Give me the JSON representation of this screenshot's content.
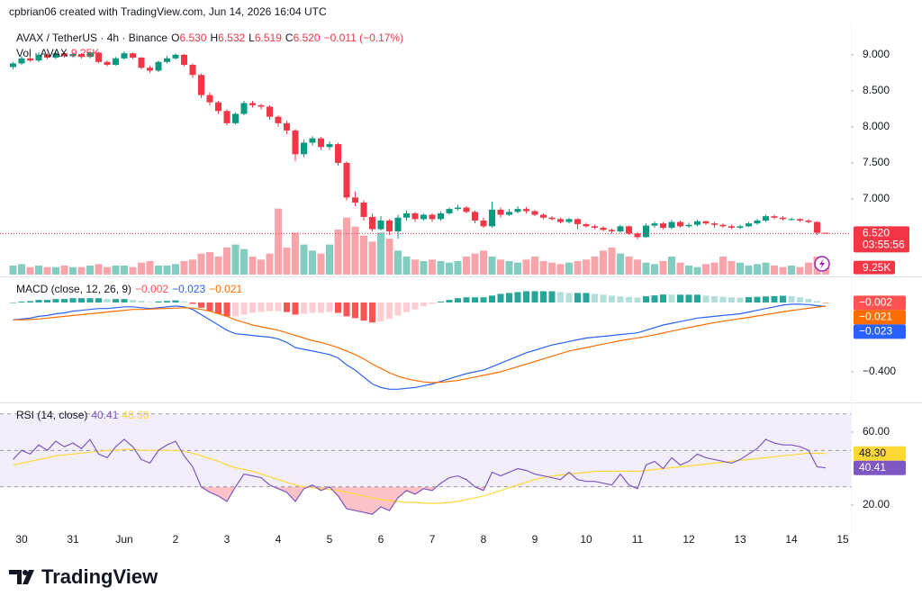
{
  "header": {
    "attribution": "cpbrian06 created with TradingView.com, Jun 14, 2026 16:04 UTC"
  },
  "logo": "TradingView",
  "chart_data": [
    {
      "type": "candlestick",
      "title": "AVAX / TetherUS · 4h · Binance",
      "legend": [
        {
          "key": "O",
          "value": "6.530"
        },
        {
          "key": "H",
          "value": "6.532"
        },
        {
          "key": "L",
          "value": "6.519"
        },
        {
          "key": "C",
          "value": "6.520"
        }
      ],
      "change": "−0.011 (−0.17%)",
      "categories": [
        null,
        "30",
        null,
        null,
        null,
        null,
        null,
        "31",
        null,
        null,
        null,
        null,
        null,
        "Jun",
        null,
        null,
        null,
        null,
        null,
        "2",
        null,
        null,
        null,
        null,
        null,
        "3",
        null,
        null,
        null,
        null,
        null,
        "4",
        null,
        null,
        null,
        null,
        null,
        "5",
        null,
        null,
        null,
        null,
        null,
        "6",
        null,
        null,
        null,
        null,
        null,
        "7",
        null,
        null,
        null,
        null,
        null,
        "8",
        null,
        null,
        null,
        null,
        null,
        "9",
        null,
        null,
        null,
        null,
        null,
        "10",
        null,
        null,
        null,
        null,
        null,
        "11",
        null,
        null,
        null,
        null,
        null,
        "12",
        null,
        null,
        null,
        null,
        null,
        "13",
        null,
        null,
        null,
        null,
        null,
        "14",
        null,
        null,
        null,
        null,
        null,
        "15"
      ],
      "open": [
        8.83,
        8.88,
        8.95,
        8.92,
        9.0,
        8.96,
        9.02,
        8.98,
        9.01,
        8.97,
        9.03,
        8.9,
        8.86,
        8.95,
        9.02,
        8.96,
        8.82,
        8.78,
        8.9,
        8.95,
        9.0,
        8.86,
        8.72,
        8.44,
        8.34,
        8.22,
        8.05,
        8.18,
        8.33,
        8.3,
        8.28,
        8.14,
        8.05,
        7.95,
        7.62,
        7.78,
        7.84,
        7.72,
        7.76,
        7.5,
        7.02,
        6.95,
        6.75,
        6.58,
        6.7,
        6.55,
        6.74,
        6.8,
        6.72,
        6.78,
        6.72,
        6.8,
        6.86,
        6.88,
        6.82,
        6.7,
        6.62,
        6.85,
        6.78,
        6.82,
        6.86,
        6.83,
        6.78,
        6.74,
        6.72,
        6.68,
        6.72,
        6.65,
        6.62,
        6.6,
        6.57,
        6.55,
        6.62,
        6.52,
        6.47,
        6.63,
        6.66,
        6.6,
        6.68,
        6.62,
        6.64,
        6.69,
        6.66,
        6.64,
        6.62,
        6.6,
        6.62,
        6.66,
        6.7,
        6.76,
        6.74,
        6.72,
        6.72,
        6.7,
        6.68,
        6.53,
        null,
        null
      ],
      "high": [
        8.9,
        8.98,
        8.97,
        9.03,
        9.02,
        9.04,
        9.03,
        9.03,
        9.02,
        9.05,
        9.04,
        8.92,
        8.97,
        9.05,
        9.03,
        8.97,
        8.85,
        8.92,
        8.98,
        9.02,
        9.01,
        8.88,
        8.74,
        8.48,
        8.36,
        8.24,
        8.2,
        8.36,
        8.36,
        8.32,
        8.3,
        8.16,
        8.08,
        7.97,
        7.82,
        7.87,
        7.86,
        7.8,
        7.78,
        7.52,
        7.1,
        6.98,
        6.8,
        6.76,
        6.72,
        6.78,
        6.84,
        6.82,
        6.8,
        6.8,
        6.83,
        6.88,
        6.92,
        6.9,
        6.84,
        6.74,
        6.96,
        6.88,
        6.86,
        6.9,
        6.89,
        6.85,
        6.8,
        6.76,
        6.74,
        6.74,
        6.73,
        6.67,
        6.64,
        6.62,
        6.59,
        6.64,
        6.63,
        6.54,
        6.66,
        6.69,
        6.68,
        6.71,
        6.7,
        6.67,
        6.71,
        6.7,
        6.68,
        6.66,
        6.64,
        6.64,
        6.68,
        6.72,
        6.78,
        6.78,
        6.76,
        6.74,
        6.73,
        6.72,
        6.69,
        6.532,
        null,
        null
      ],
      "low": [
        8.8,
        8.86,
        8.9,
        8.9,
        8.94,
        8.94,
        8.96,
        8.96,
        8.95,
        8.95,
        8.88,
        8.84,
        8.85,
        8.93,
        8.94,
        8.8,
        8.75,
        8.76,
        8.88,
        8.93,
        8.84,
        8.68,
        8.4,
        8.3,
        8.18,
        8.02,
        8.03,
        8.16,
        8.27,
        8.24,
        8.1,
        8.0,
        7.9,
        7.52,
        7.58,
        7.74,
        7.68,
        7.68,
        7.46,
        6.98,
        6.9,
        6.7,
        6.55,
        6.56,
        6.5,
        6.45,
        6.7,
        6.68,
        6.7,
        6.68,
        6.7,
        6.78,
        6.84,
        6.8,
        6.66,
        6.6,
        6.6,
        6.74,
        6.76,
        6.8,
        6.8,
        6.76,
        6.72,
        6.7,
        6.66,
        6.66,
        6.58,
        6.6,
        6.58,
        6.55,
        6.52,
        6.53,
        6.5,
        6.44,
        6.46,
        6.6,
        6.58,
        6.58,
        6.6,
        6.6,
        6.62,
        6.64,
        6.6,
        6.6,
        6.58,
        6.58,
        6.61,
        6.64,
        6.68,
        6.72,
        6.7,
        6.7,
        6.68,
        6.66,
        6.5,
        6.519,
        null,
        null
      ],
      "close": [
        8.88,
        8.95,
        8.92,
        9.0,
        8.96,
        9.02,
        8.98,
        9.01,
        8.97,
        9.03,
        8.9,
        8.86,
        8.95,
        9.02,
        8.96,
        8.82,
        8.78,
        8.9,
        8.95,
        9.0,
        8.86,
        8.72,
        8.44,
        8.34,
        8.22,
        8.05,
        8.18,
        8.33,
        8.3,
        8.28,
        8.14,
        8.05,
        7.95,
        7.62,
        7.78,
        7.84,
        7.72,
        7.76,
        7.5,
        7.02,
        6.95,
        6.75,
        6.58,
        6.7,
        6.55,
        6.74,
        6.8,
        6.72,
        6.78,
        6.72,
        6.8,
        6.86,
        6.88,
        6.82,
        6.7,
        6.62,
        6.85,
        6.78,
        6.82,
        6.86,
        6.83,
        6.78,
        6.74,
        6.72,
        6.68,
        6.72,
        6.65,
        6.62,
        6.6,
        6.57,
        6.55,
        6.62,
        6.52,
        6.47,
        6.63,
        6.66,
        6.6,
        6.68,
        6.62,
        6.64,
        6.69,
        6.66,
        6.64,
        6.62,
        6.6,
        6.62,
        6.66,
        6.7,
        6.76,
        6.74,
        6.72,
        6.72,
        6.7,
        6.68,
        6.53,
        6.52,
        null,
        null
      ],
      "close_label": "6.520",
      "countdown": "03:55:56",
      "up_color": "#089981",
      "down_color": "#f23645",
      "ylim": [
        5.95,
        9.41
      ],
      "yticks": [
        {
          "value": 7,
          "label": "7.000"
        },
        {
          "value": 7.5,
          "label": "7.500"
        },
        {
          "value": 8,
          "label": "8.000"
        },
        {
          "value": 8.5,
          "label": "8.500"
        },
        {
          "value": 9,
          "label": "9.000"
        }
      ],
      "grid": false
    },
    {
      "type": "bar",
      "title": "Vol · AVAX",
      "values": [
        6,
        7,
        5,
        6,
        5,
        5,
        6,
        5,
        5,
        6,
        7,
        5,
        6,
        6,
        5,
        8,
        9,
        6,
        6,
        7,
        9,
        10,
        14,
        15,
        12,
        18,
        20,
        17,
        12,
        10,
        14,
        44,
        18,
        28,
        20,
        16,
        14,
        20,
        30,
        38,
        32,
        26,
        22,
        28,
        24,
        16,
        12,
        10,
        9,
        10,
        9,
        8,
        9,
        12,
        14,
        16,
        12,
        10,
        9,
        8,
        10,
        12,
        9,
        8,
        7,
        8,
        9,
        10,
        12,
        16,
        18,
        14,
        12,
        10,
        8,
        7,
        9,
        12,
        8,
        6,
        5,
        7,
        8,
        12,
        9,
        8,
        6,
        7,
        8,
        6,
        5,
        6,
        5,
        8,
        12,
        9.25,
        null,
        null
      ],
      "last_label": "9.25K",
      "up_color": "rgba(8,153,129,0.5)",
      "down_color": "rgba(242,54,69,0.45)",
      "ylim": [
        0,
        60
      ]
    },
    {
      "type": "macd",
      "title": "MACD (close, 12, 26, 9)",
      "series": [
        {
          "colors": [
            "#26a69a",
            "#b2dfdb",
            "#ffcdd2",
            "#ff5252"
          ],
          "last_label": "−0.002",
          "values": [
            0,
            0.005,
            0.008,
            0.015,
            0.015,
            0.02,
            0.02,
            0.025,
            0.025,
            0.025,
            0.025,
            0.02,
            0.02,
            0.02,
            0.015,
            0.01,
            0.003,
            0.006,
            0.009,
            0.012,
            0.005,
            -0.008,
            -0.03,
            -0.05,
            -0.065,
            -0.08,
            -0.08,
            -0.07,
            -0.06,
            -0.055,
            -0.05,
            -0.05,
            -0.055,
            -0.07,
            -0.065,
            -0.06,
            -0.06,
            -0.055,
            -0.06,
            -0.08,
            -0.09,
            -0.105,
            -0.115,
            -0.11,
            -0.095,
            -0.075,
            -0.055,
            -0.04,
            -0.022,
            -0.008,
            0.005,
            0.015,
            0.025,
            0.03,
            0.03,
            0.03,
            0.04,
            0.05,
            0.055,
            0.06,
            0.065,
            0.065,
            0.065,
            0.065,
            0.06,
            0.055,
            0.055,
            0.055,
            0.05,
            0.045,
            0.04,
            0.035,
            0.032,
            0.029,
            0.036,
            0.041,
            0.046,
            0.045,
            0.045,
            0.045,
            0.045,
            0.04,
            0.036,
            0.033,
            0.03,
            0.028,
            0.031,
            0.033,
            0.035,
            0.037,
            0.039,
            0.036,
            0.03,
            0.021,
            0.009,
            -0.002,
            null,
            null
          ]
        },
        {
          "color": "#2962ff",
          "last_label": "−0.023",
          "values": [
            -0.1,
            -0.095,
            -0.09,
            -0.08,
            -0.075,
            -0.065,
            -0.06,
            -0.05,
            -0.045,
            -0.04,
            -0.035,
            -0.035,
            -0.03,
            -0.025,
            -0.025,
            -0.03,
            -0.035,
            -0.03,
            -0.025,
            -0.02,
            -0.025,
            -0.04,
            -0.07,
            -0.1,
            -0.13,
            -0.16,
            -0.18,
            -0.185,
            -0.19,
            -0.195,
            -0.2,
            -0.21,
            -0.23,
            -0.26,
            -0.27,
            -0.28,
            -0.29,
            -0.3,
            -0.32,
            -0.36,
            -0.39,
            -0.43,
            -0.47,
            -0.49,
            -0.5,
            -0.5,
            -0.495,
            -0.49,
            -0.48,
            -0.47,
            -0.455,
            -0.44,
            -0.425,
            -0.41,
            -0.4,
            -0.39,
            -0.37,
            -0.35,
            -0.33,
            -0.31,
            -0.29,
            -0.275,
            -0.26,
            -0.245,
            -0.235,
            -0.225,
            -0.215,
            -0.205,
            -0.2,
            -0.195,
            -0.19,
            -0.185,
            -0.18,
            -0.175,
            -0.16,
            -0.145,
            -0.13,
            -0.12,
            -0.11,
            -0.1,
            -0.09,
            -0.085,
            -0.08,
            -0.075,
            -0.07,
            -0.065,
            -0.055,
            -0.045,
            -0.035,
            -0.025,
            -0.015,
            -0.01,
            -0.01,
            -0.012,
            -0.018,
            -0.023,
            null,
            null
          ]
        },
        {
          "color": "#ff6d00",
          "last_label": "−0.021",
          "values": [
            -0.1,
            -0.1,
            -0.098,
            -0.095,
            -0.09,
            -0.085,
            -0.08,
            -0.075,
            -0.07,
            -0.065,
            -0.06,
            -0.055,
            -0.05,
            -0.045,
            -0.04,
            -0.04,
            -0.038,
            -0.036,
            -0.034,
            -0.032,
            -0.03,
            -0.032,
            -0.04,
            -0.05,
            -0.065,
            -0.08,
            -0.1,
            -0.115,
            -0.13,
            -0.14,
            -0.15,
            -0.16,
            -0.175,
            -0.19,
            -0.205,
            -0.22,
            -0.23,
            -0.245,
            -0.26,
            -0.28,
            -0.3,
            -0.325,
            -0.355,
            -0.38,
            -0.405,
            -0.425,
            -0.44,
            -0.45,
            -0.458,
            -0.462,
            -0.46,
            -0.455,
            -0.45,
            -0.44,
            -0.43,
            -0.42,
            -0.41,
            -0.4,
            -0.385,
            -0.37,
            -0.355,
            -0.34,
            -0.325,
            -0.31,
            -0.295,
            -0.28,
            -0.27,
            -0.26,
            -0.25,
            -0.24,
            -0.23,
            -0.22,
            -0.212,
            -0.204,
            -0.196,
            -0.186,
            -0.176,
            -0.165,
            -0.155,
            -0.145,
            -0.135,
            -0.125,
            -0.116,
            -0.108,
            -0.1,
            -0.093,
            -0.086,
            -0.078,
            -0.07,
            -0.062,
            -0.054,
            -0.046,
            -0.04,
            -0.033,
            -0.027,
            -0.021,
            null,
            null
          ]
        }
      ],
      "ylim": [
        -0.566,
        0.135
      ],
      "yticks": [
        {
          "value": -0.4,
          "label": "−0.400"
        }
      ]
    },
    {
      "type": "rsi",
      "title": "RSI (14, close)",
      "series": [
        {
          "color": "#7e57c2",
          "last_label": "40.41",
          "values": [
            45,
            50,
            48,
            53,
            50,
            55,
            52,
            54,
            51,
            56,
            48,
            46,
            52,
            56,
            52,
            45,
            43,
            50,
            53,
            55,
            47,
            41,
            30,
            27,
            25,
            22,
            30,
            37,
            36,
            35,
            31,
            29,
            27,
            22,
            29,
            31,
            28,
            30,
            25,
            18,
            17,
            16,
            15,
            19,
            17,
            24,
            28,
            26,
            29,
            28,
            32,
            35,
            36,
            34,
            30,
            28,
            38,
            36,
            38,
            40,
            39,
            37,
            36,
            35,
            34,
            38,
            34,
            33,
            33,
            32,
            31,
            37,
            31,
            29,
            42,
            44,
            40,
            46,
            42,
            44,
            48,
            46,
            45,
            44,
            43,
            45,
            48,
            51,
            56,
            54,
            53,
            53,
            52,
            50,
            41,
            40.41,
            null,
            null
          ]
        },
        {
          "color": "#fdd835",
          "last_label": "48.30",
          "values": [
            42,
            43,
            44,
            45,
            46,
            47,
            47.5,
            48,
            48.5,
            49,
            49.5,
            50,
            50,
            50.5,
            50.5,
            50,
            50,
            50,
            50,
            50,
            49.5,
            48.5,
            47,
            45.5,
            44,
            42,
            40.5,
            39.5,
            38.5,
            37,
            35.5,
            34,
            32.5,
            31,
            30,
            29.5,
            29,
            28.5,
            28,
            27,
            26,
            25,
            24,
            23,
            22.5,
            22,
            21.5,
            21.5,
            21,
            21,
            21,
            21.5,
            22,
            23,
            24,
            25,
            26.5,
            28,
            29.5,
            31,
            32.5,
            34,
            35,
            36,
            36.5,
            37,
            37.5,
            38,
            38.5,
            38.5,
            38.5,
            38.5,
            38.5,
            38.5,
            39,
            39.5,
            40,
            40.5,
            41,
            41.5,
            42,
            42.5,
            43,
            43.5,
            44,
            44.5,
            45,
            45.5,
            46,
            46.5,
            47,
            47.5,
            48,
            48.5,
            48.4,
            48.3,
            null,
            null
          ]
        }
      ],
      "bands": [
        70,
        50,
        30
      ],
      "ylim": [
        5.7,
        74.8
      ],
      "yticks": [
        {
          "value": 20,
          "label": "20.00"
        },
        {
          "value": 60,
          "label": "60.00"
        }
      ]
    }
  ]
}
